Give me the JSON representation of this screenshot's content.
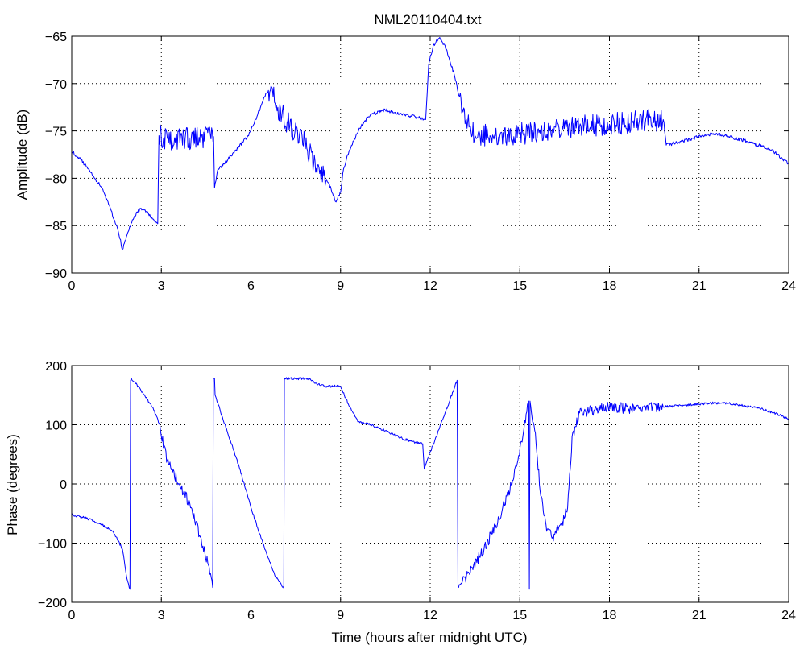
{
  "chart_data": [
    {
      "type": "line",
      "title": "NML20110404.txt",
      "xlabel": "",
      "ylabel": "Amplitude (dB)",
      "xlim": [
        0,
        24
      ],
      "ylim": [
        -90,
        -65
      ],
      "xticks": [
        0,
        3,
        6,
        9,
        12,
        15,
        18,
        21,
        24
      ],
      "yticks": [
        -90,
        -85,
        -80,
        -75,
        -70,
        -65
      ],
      "xtick_labels": [
        "0",
        "3",
        "6",
        "9",
        "12",
        "15",
        "18",
        "21",
        "24"
      ],
      "ytick_labels": [
        "−90",
        "−85",
        "−80",
        "−75",
        "−70",
        "−65"
      ],
      "grid": true,
      "color": "#0000ff",
      "series": [
        {
          "x": [
            0,
            0.3,
            0.6,
            1.0,
            1.3,
            1.55,
            1.7,
            1.85,
            2.1,
            2.3,
            2.5,
            2.75,
            2.88,
            2.92,
            3.2,
            4.0,
            4.75,
            4.78,
            4.9,
            5.1,
            5.5,
            5.9,
            6.2,
            6.5,
            6.65,
            6.9,
            7.3,
            7.8,
            8.1,
            8.3,
            8.6,
            8.85,
            9.0,
            9.1,
            9.3,
            9.6,
            9.8,
            10.0,
            10.5,
            11.0,
            11.5,
            11.85,
            11.95,
            12.1,
            12.3,
            12.5,
            12.8,
            13.1,
            13.5,
            14.0,
            15.0,
            16.0,
            17.0,
            18.0,
            19.0,
            19.8,
            19.9,
            20.3,
            20.8,
            21.2,
            21.6,
            22.0,
            22.5,
            23.0,
            23.5,
            24.0
          ],
          "y": [
            -77.2,
            -78.0,
            -79.2,
            -81.0,
            -83.2,
            -85.5,
            -87.5,
            -86.0,
            -84.0,
            -83.2,
            -83.5,
            -84.4,
            -84.8,
            -75.5,
            -75.8,
            -75.8,
            -75.6,
            -81.0,
            -79.0,
            -78.5,
            -77.0,
            -75.5,
            -73.5,
            -71.0,
            -70.7,
            -72.5,
            -74.5,
            -76.0,
            -78.5,
            -79.5,
            -80.5,
            -82.5,
            -81.5,
            -79.0,
            -77.0,
            -75.0,
            -74.0,
            -73.3,
            -72.8,
            -73.2,
            -73.5,
            -73.8,
            -68.0,
            -66.0,
            -65.2,
            -66.0,
            -69.0,
            -73.0,
            -75.5,
            -75.5,
            -75.3,
            -75.0,
            -74.5,
            -74.3,
            -74.0,
            -73.8,
            -76.5,
            -76.2,
            -75.8,
            -75.4,
            -75.3,
            -75.6,
            -76.0,
            -76.5,
            -77.2,
            -78.5
          ]
        }
      ]
    },
    {
      "type": "line",
      "title": "",
      "xlabel": "Time (hours after midnight UTC)",
      "ylabel": "Phase (degrees)",
      "xlim": [
        0,
        24
      ],
      "ylim": [
        -200,
        200
      ],
      "xticks": [
        0,
        3,
        6,
        9,
        12,
        15,
        18,
        21,
        24
      ],
      "yticks": [
        -200,
        -100,
        0,
        100,
        200
      ],
      "xtick_labels": [
        "0",
        "3",
        "6",
        "9",
        "12",
        "15",
        "18",
        "21",
        "24"
      ],
      "ytick_labels": [
        "−200",
        "−100",
        "0",
        "100",
        "200"
      ],
      "grid": true,
      "color": "#0000ff",
      "series": [
        {
          "x": [
            0,
            0.5,
            1.0,
            1.4,
            1.7,
            1.85,
            1.95,
            1.97,
            2.0,
            2.3,
            2.7,
            2.95,
            3.0,
            3.2,
            3.6,
            4.0,
            4.3,
            4.6,
            4.72,
            4.74,
            4.78,
            4.8,
            5.2,
            5.6,
            6.0,
            6.4,
            6.8,
            7.1,
            7.12,
            7.5,
            7.9,
            8.05,
            8.15,
            8.5,
            9.0,
            9.3,
            9.6,
            10.0,
            10.5,
            11.0,
            11.5,
            11.75,
            11.8,
            11.9,
            12.2,
            12.5,
            12.9,
            12.93,
            13.3,
            13.8,
            14.3,
            14.8,
            15.1,
            15.3,
            15.32,
            15.34,
            15.5,
            15.7,
            15.9,
            16.1,
            16.4,
            16.6,
            16.75,
            17.0,
            17.5,
            18.0,
            18.5,
            19.0,
            19.8,
            20.5,
            21.0,
            21.5,
            22.0,
            22.5,
            23.0,
            23.5,
            24.0
          ],
          "y": [
            -52,
            -58,
            -68,
            -82,
            -110,
            -160,
            -178,
            175,
            178,
            160,
            130,
            100,
            80,
            40,
            0,
            -40,
            -90,
            -140,
            -175,
            178,
            178,
            150,
            90,
            30,
            -40,
            -100,
            -155,
            -176,
            178,
            178,
            178,
            175,
            170,
            165,
            165,
            130,
            105,
            100,
            90,
            78,
            70,
            68,
            25,
            40,
            80,
            120,
            175,
            -175,
            -150,
            -110,
            -60,
            10,
            80,
            140,
            -178,
            140,
            90,
            -20,
            -80,
            -90,
            -70,
            -40,
            80,
            120,
            125,
            130,
            128,
            127,
            130,
            133,
            135,
            137,
            136,
            132,
            128,
            120,
            110
          ]
        }
      ]
    }
  ]
}
